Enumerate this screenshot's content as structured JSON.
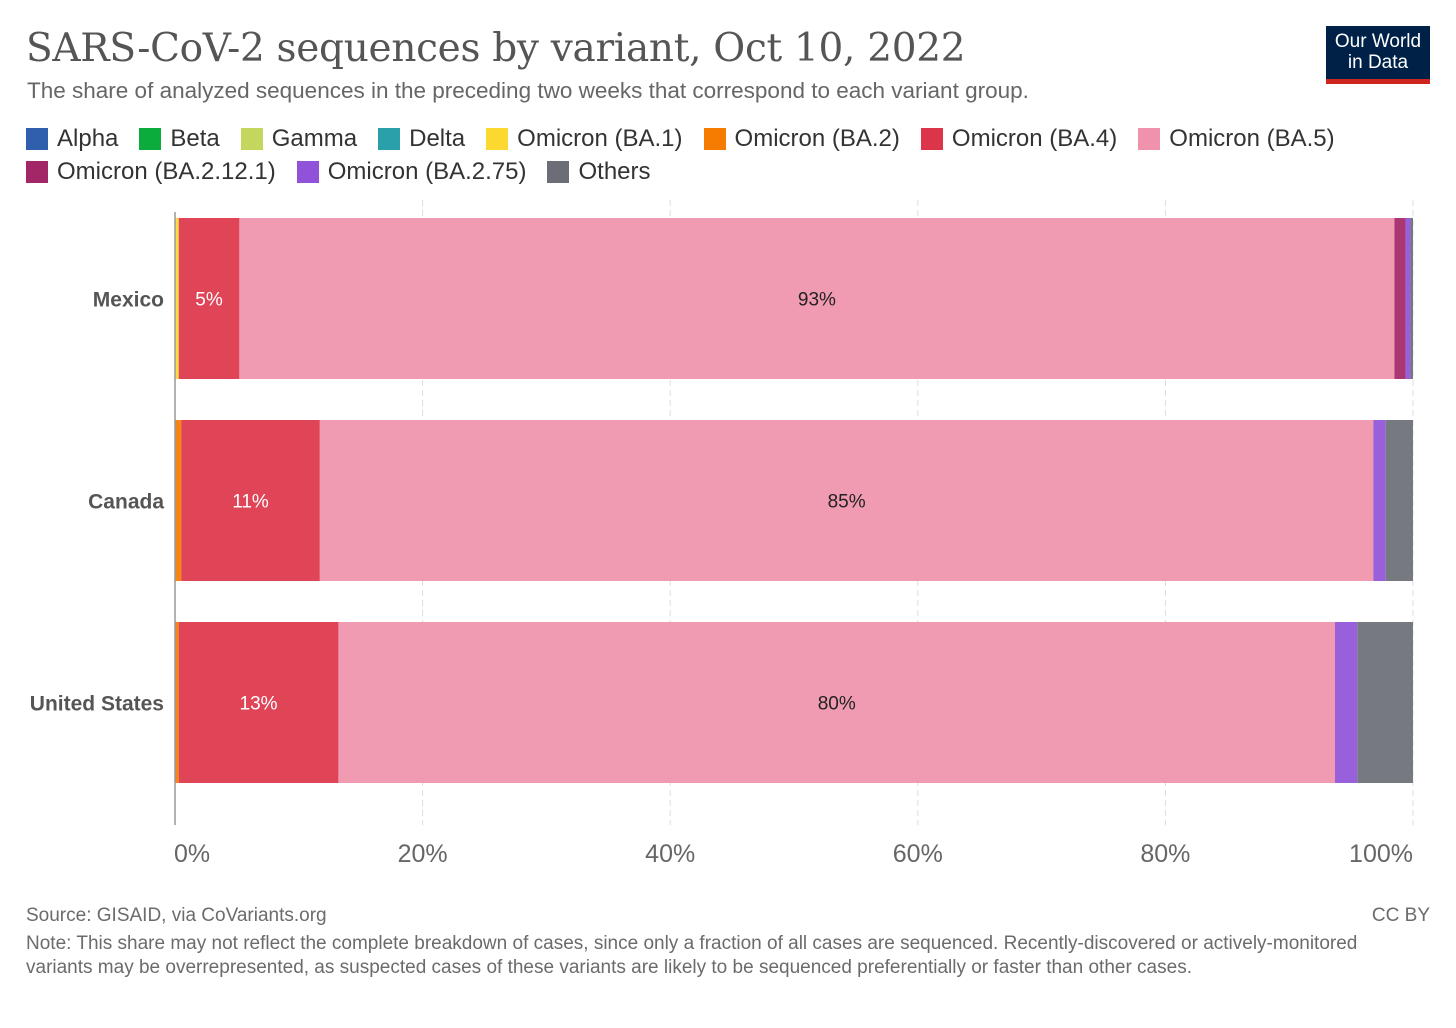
{
  "header": {
    "title": "SARS-CoV-2 sequences by variant, Oct 10, 2022",
    "subtitle": "The share of analyzed sequences in the preceding two weeks that correspond to each variant group.",
    "logo_line1": "Our World",
    "logo_line2": "in Data"
  },
  "colors": {
    "Alpha": "#2f5fad",
    "Beta": "#0bab3c",
    "Gamma": "#c4d65e",
    "Delta": "#2aa0aa",
    "Omicron (BA.1)": "#fcd931",
    "Omicron (BA.2)": "#f57c00",
    "Omicron (BA.4)": "#dc3549",
    "Omicron (BA.5)": "#f092ac",
    "Omicron (BA.2.12.1)": "#a32666",
    "Omicron (BA.2.75)": "#8f52d8",
    "Others": "#6b6e76"
  },
  "chart_data": {
    "type": "bar",
    "orientation": "horizontal",
    "stacked": true,
    "title": "SARS-CoV-2 sequences by variant, Oct 10, 2022",
    "xlabel": "",
    "ylabel": "",
    "xlim": [
      0,
      100
    ],
    "xticks": [
      0,
      20,
      40,
      60,
      80,
      100
    ],
    "xtick_labels": [
      "0%",
      "20%",
      "40%",
      "60%",
      "80%",
      "100%"
    ],
    "grid": true,
    "legend_position": "top",
    "categories": [
      "Mexico",
      "Canada",
      "United States"
    ],
    "series": [
      {
        "name": "Alpha",
        "values": [
          0,
          0,
          0
        ]
      },
      {
        "name": "Beta",
        "values": [
          0,
          0,
          0
        ]
      },
      {
        "name": "Gamma",
        "values": [
          0,
          0,
          0
        ]
      },
      {
        "name": "Delta",
        "values": [
          0,
          0,
          0
        ]
      },
      {
        "name": "Omicron (BA.1)",
        "values": [
          0.3,
          0,
          0
        ]
      },
      {
        "name": "Omicron (BA.2)",
        "values": [
          0,
          0.5,
          0.3
        ]
      },
      {
        "name": "Omicron (BA.4)",
        "values": [
          4.9,
          11.2,
          12.9
        ]
      },
      {
        "name": "Omicron (BA.5)",
        "values": [
          93.3,
          85.1,
          80.5
        ]
      },
      {
        "name": "Omicron (BA.2.12.1)",
        "values": [
          0.9,
          0,
          0
        ]
      },
      {
        "name": "Omicron (BA.2.75)",
        "values": [
          0.4,
          1.0,
          1.8
        ]
      },
      {
        "name": "Others",
        "values": [
          0.2,
          2.2,
          4.5
        ]
      }
    ],
    "data_labels": [
      {
        "category": "Mexico",
        "series": "Omicron (BA.4)",
        "label": "5%"
      },
      {
        "category": "Mexico",
        "series": "Omicron (BA.5)",
        "label": "93%"
      },
      {
        "category": "Canada",
        "series": "Omicron (BA.4)",
        "label": "11%"
      },
      {
        "category": "Canada",
        "series": "Omicron (BA.5)",
        "label": "85%"
      },
      {
        "category": "United States",
        "series": "Omicron (BA.4)",
        "label": "13%"
      },
      {
        "category": "United States",
        "series": "Omicron (BA.5)",
        "label": "80%"
      }
    ]
  },
  "footer": {
    "source": "Source: GISAID, via CoVariants.org",
    "license": "CC BY",
    "note": "Note: This share may not reflect the complete breakdown of cases, since only a fraction of all cases are sequenced. Recently-discovered or actively-monitored variants may be overrepresented, as suspected cases of these variants are likely to be sequenced preferentially or faster than other cases."
  }
}
